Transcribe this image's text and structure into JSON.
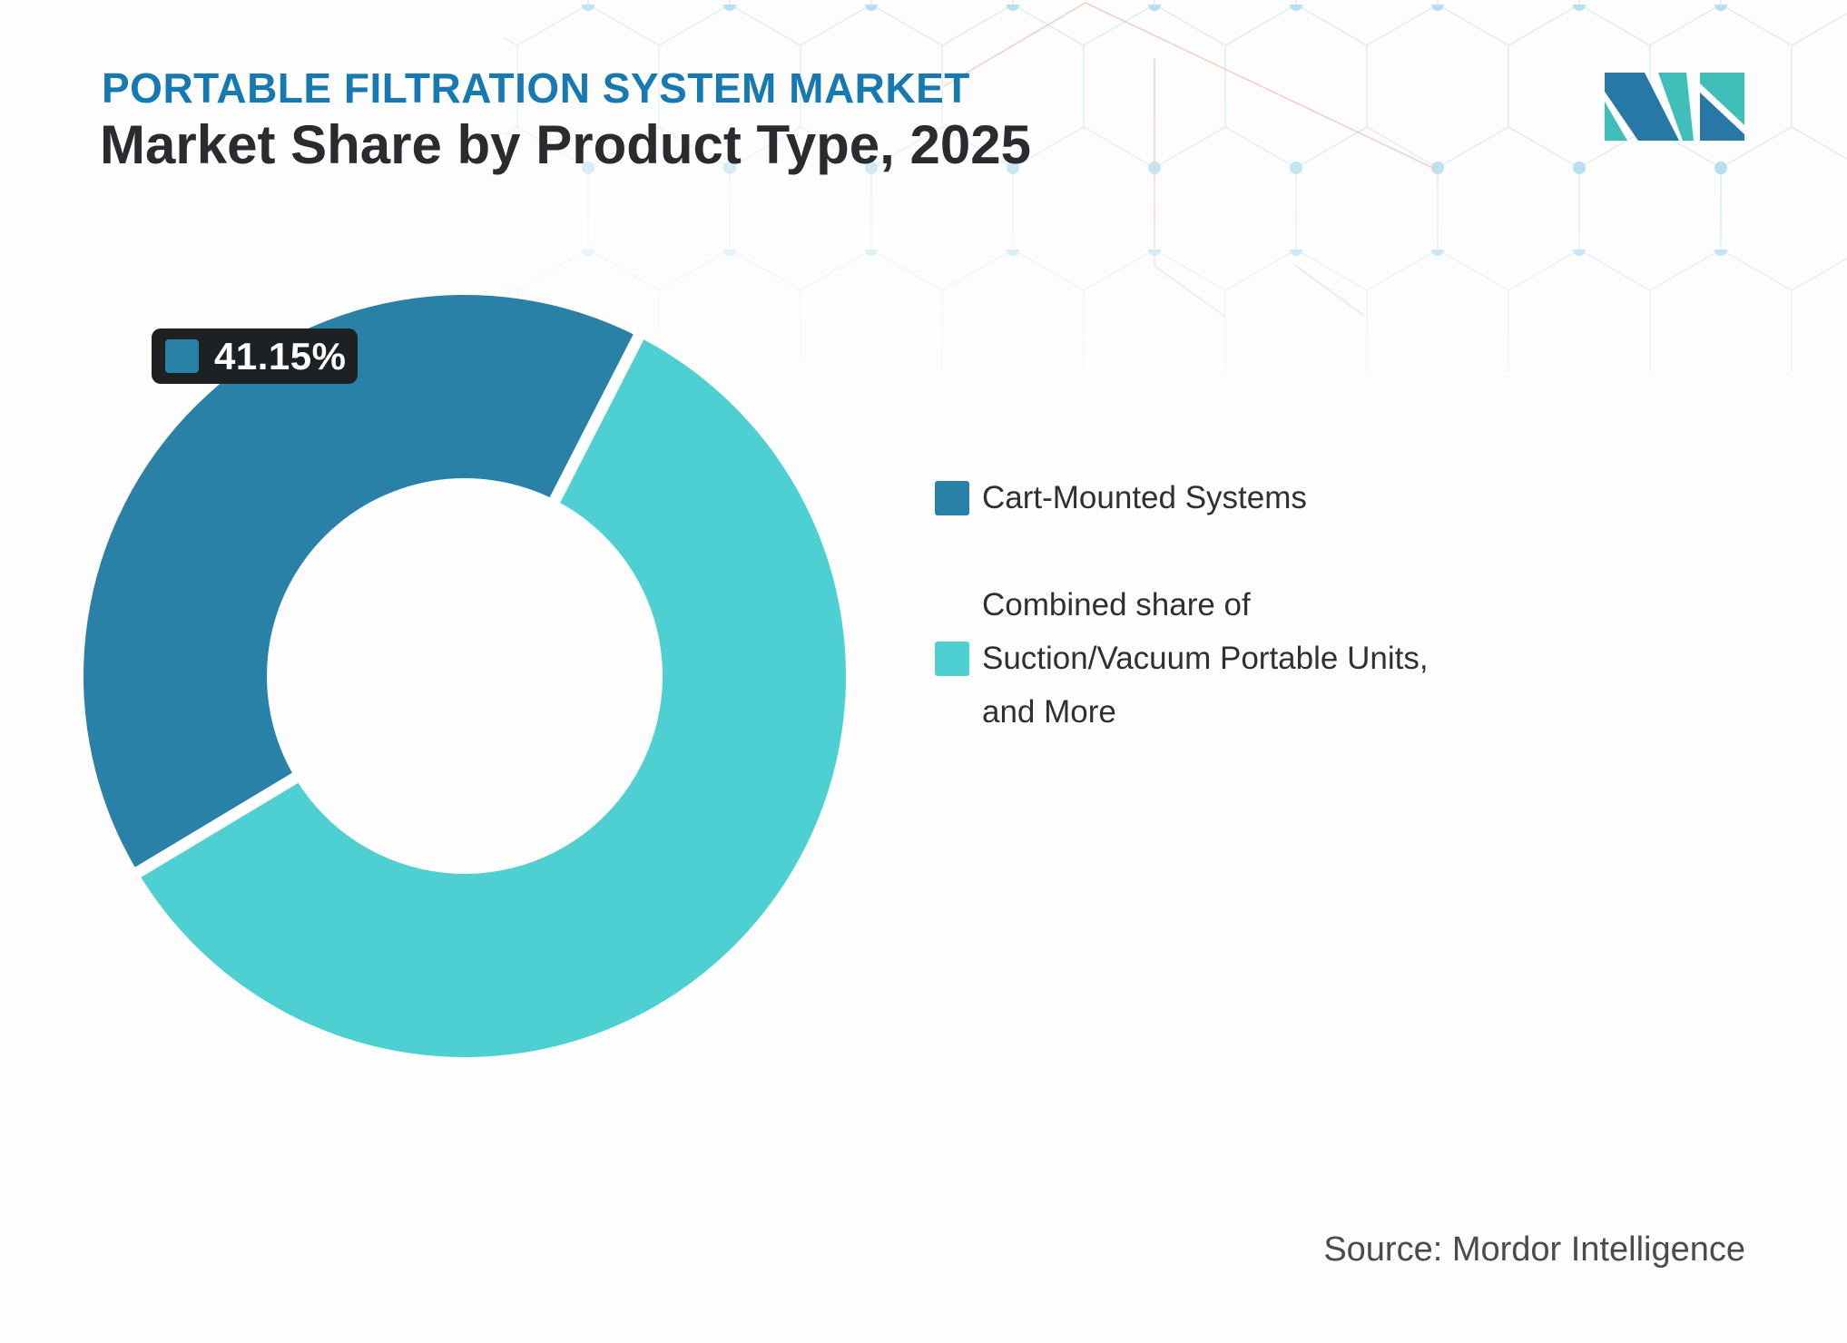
{
  "header": {
    "eyebrow": "PORTABLE FILTRATION SYSTEM MARKET",
    "title": "Market Share by Product Type, 2025"
  },
  "chart_data": {
    "type": "pie",
    "subtype": "donut",
    "title": "Market Share by Product Type, 2025",
    "slices": [
      {
        "label": "Cart-Mounted Systems",
        "value": 41.15,
        "color": "#2a81a8"
      },
      {
        "label": "Combined share of Suction/Vacuum Portable Units, and More",
        "value": 58.85,
        "color": "#4ecfd2"
      }
    ],
    "datalabel": {
      "text": "41.15%",
      "slice_index": 0
    },
    "rotation_deg": -121,
    "inner_radius_ratio": 0.52,
    "legend_position": "right",
    "gap_between_slices": true
  },
  "legend": {
    "items": [
      {
        "label": "Cart-Mounted Systems"
      },
      {
        "label": "Combined share of\nSuction/Vacuum Portable Units,\nand More"
      }
    ]
  },
  "source": {
    "text": "Source: Mordor Intelligence"
  },
  "icons": {
    "logo": "mordor-intelligence-logo"
  },
  "colors": {
    "eyebrow_blue": "#1779b2",
    "title_dark": "#2a2b2f",
    "slice_dark_blue": "#2a81a8",
    "slice_light_teal": "#4ecfd2",
    "badge_background": "#1e2124",
    "badge_text": "#ffffff",
    "legend_text": "#2f3033",
    "source_text": "#4b4b4d",
    "logo_blue": "#2878a7",
    "logo_teal": "#3fbeba",
    "pattern_line_blue": "#d8ecf6",
    "pattern_dot_blue": "#b7dff1",
    "pattern_line_red": "#f6c4b5"
  }
}
